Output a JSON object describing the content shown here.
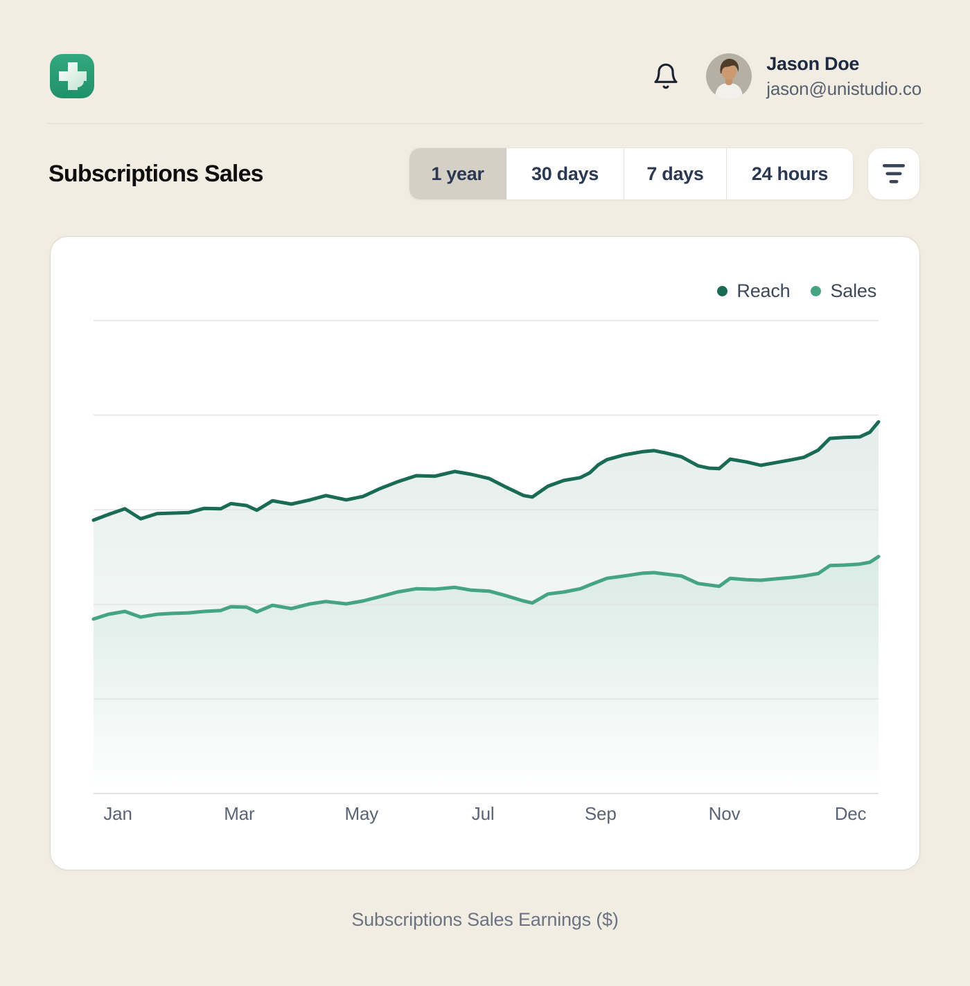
{
  "header": {
    "user": {
      "name": "Jason Doe",
      "email": "jason@unistudio.co"
    },
    "bell_icon": "notifications-bell",
    "logo_icon": "plus-cross-logo"
  },
  "toolbar": {
    "title": "Subscriptions Sales",
    "ranges": [
      {
        "label": "1 year",
        "selected": true
      },
      {
        "label": "30 days",
        "selected": false
      },
      {
        "label": "7 days",
        "selected": false
      },
      {
        "label": "24 hours",
        "selected": false
      }
    ],
    "filter_icon": "filter-lines"
  },
  "chart_data": {
    "type": "area",
    "title": "Subscriptions Sales",
    "legend": {
      "position": "top-right",
      "entries": [
        "Reach",
        "Sales"
      ]
    },
    "x_axis": {
      "tick_labels": [
        "Jan",
        "Mar",
        "May",
        "Jul",
        "Sep",
        "Nov",
        "Dec"
      ],
      "tick_positions_pct": [
        3.1,
        18.6,
        34.2,
        49.7,
        64.7,
        80.5,
        96.6
      ]
    },
    "y_axis": {
      "labels_shown": false,
      "gridline_count": 6,
      "scale": "percent of plot height, 0 = bottom axis, 100 = top gridline"
    },
    "x_pct": [
      0,
      1.9,
      4,
      6,
      8.1,
      10.2,
      12.1,
      14.1,
      16.2,
      17.5,
      19.5,
      20.8,
      22.8,
      25.2,
      27.6,
      29.6,
      32.2,
      34.3,
      36.4,
      38.7,
      41.1,
      43.5,
      46,
      48.1,
      50.4,
      52.4,
      54.8,
      55.9,
      57.9,
      59.9,
      62,
      63.2,
      64.3,
      65.4,
      67.6,
      70,
      71.4,
      72.9,
      74.9,
      77,
      78.4,
      79.7,
      81.1,
      83.2,
      85,
      87,
      89,
      90.5,
      92.3,
      93.8,
      95.6,
      97.6,
      98.9,
      100
    ],
    "series": [
      {
        "name": "Reach",
        "color": "#1a6b53",
        "values_pct": [
          57.8,
          59,
          60.2,
          58.1,
          59.2,
          59.3,
          59.4,
          60.3,
          60.2,
          61.3,
          60.9,
          59.9,
          61.9,
          61.2,
          62.1,
          63,
          62.1,
          62.8,
          64.4,
          65.9,
          67.2,
          67.1,
          68.1,
          67.5,
          66.6,
          64.9,
          63,
          62.7,
          65,
          66.2,
          66.8,
          67.8,
          69.5,
          70.6,
          71.6,
          72.3,
          72.5,
          72,
          71.2,
          69.3,
          68.8,
          68.7,
          70.7,
          70.1,
          69.4,
          70,
          70.6,
          71.1,
          72.6,
          75.1,
          75.3,
          75.4,
          76.4,
          78.6
        ]
      },
      {
        "name": "Sales",
        "color": "#45a481",
        "values_pct": [
          36.9,
          37.9,
          38.5,
          37.3,
          37.9,
          38.1,
          38.2,
          38.5,
          38.7,
          39.5,
          39.4,
          38.4,
          39.8,
          39.1,
          40.1,
          40.6,
          40.1,
          40.7,
          41.6,
          42.6,
          43.3,
          43.2,
          43.6,
          43,
          42.8,
          41.9,
          40.7,
          40.3,
          42.2,
          42.6,
          43.3,
          44.1,
          44.8,
          45.5,
          46,
          46.6,
          46.7,
          46.4,
          46,
          44.4,
          44.1,
          43.8,
          45.5,
          45.2,
          45.1,
          45.4,
          45.7,
          46,
          46.5,
          48.2,
          48.3,
          48.5,
          48.9,
          50.1
        ]
      }
    ]
  },
  "footer": {
    "caption": "Subscriptions Sales Earnings ($)"
  },
  "colors": {
    "page_background": "#f2ede3",
    "card_background": "#ffffff",
    "reach_green": "#1a6b53",
    "sales_green": "#45a481",
    "logo_green": "#2aa27b",
    "selected_segment": "#d5d0c5",
    "gridline": "#e4e4e4",
    "text_dark": "#1d2940",
    "text_muted": "#5a6476"
  }
}
